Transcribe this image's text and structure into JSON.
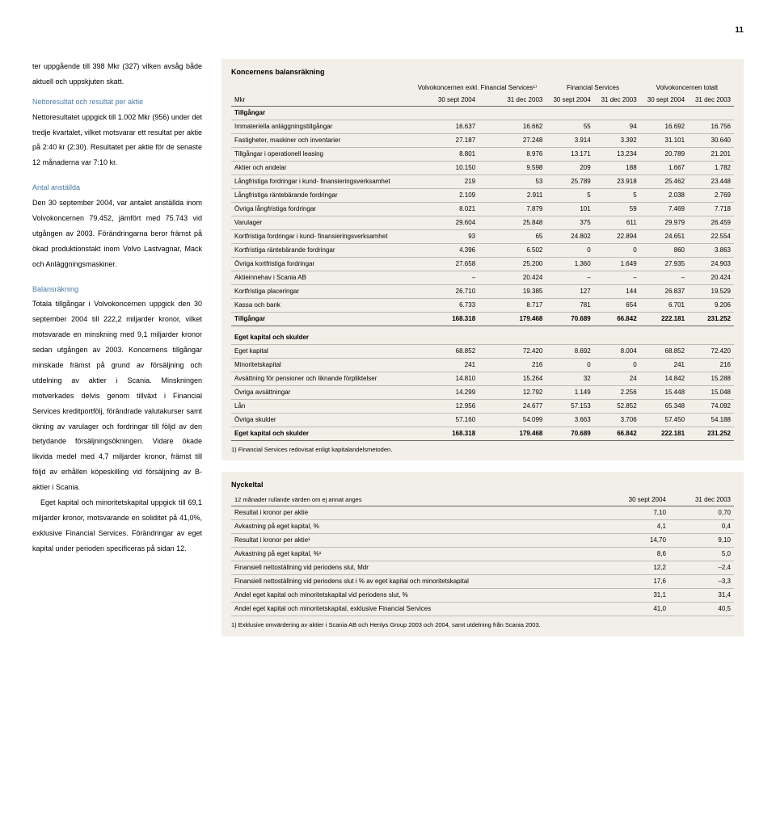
{
  "page_number": "11",
  "left": {
    "para1": "ter uppgående till 398 Mkr (327) vilken avsåg både aktuell och uppskjuten skatt.",
    "h1": "Nettoresultat och resultat per aktie",
    "para2": "Nettoresultatet uppgick till 1.002 Mkr (956) under det tredje kvartalet, vilket motsvarar ett resultat per aktie på 2:40 kr (2:30). Resultatet per aktie för de senaste 12 månaderna var 7:10 kr.",
    "h2": "Antal anställda",
    "para3": "Den 30 september 2004, var antalet anställda inom Volvokoncernen 79.452, jämfört med 75.743 vid utgången av 2003. Förändringarna beror främst på ökad produktionstakt inom Volvo Lastvagnar, Mack och Anläggningsmaskiner.",
    "h3": "Balansräkning",
    "para4": "Totala tillgångar i Volvokoncernen uppgick den 30 september 2004 till 222,2 miljarder kronor, vilket motsvarade en minskning med 9,1 miljarder kronor sedan utgången av 2003. Koncernens tillgångar minskade främst på grund av försäljning och utdelning av aktier i Scania. Minskningen motverkades delvis genom tillväxt i Financial Services kreditportfölj, förändrade valutakurser samt ökning av varulager och fordringar till följd av den betydande försäljningsökningen. Vidare ökade likvida medel med 4,7 miljarder kronor, främst till följd av erhållen köpeskilling vid försäljning av B-aktier i Scania.",
    "para5": "Eget kapital och minoritetskapital uppgick till 69,1 miljarder kronor, motsvarande en soliditet på 41,0%, exklusive Financial Services. Förändringar av eget kapital under perioden specificeras på sidan 12."
  },
  "balance": {
    "title": "Koncernens balansräkning",
    "group_headers": [
      "",
      "Volvokoncernen exkl. Financial Services¹⁾",
      "Financial Services",
      "Volvokoncernen totalt"
    ],
    "col_unit": "Mkr",
    "col_headers": [
      "30 sept 2004",
      "31 dec 2003",
      "30 sept 2004",
      "31 dec 2003",
      "30 sept 2004",
      "31 dec 2003"
    ],
    "section1": "Tillgångar",
    "rows1": [
      [
        "Immateriella anläggningstillgångar",
        "16.637",
        "16.662",
        "55",
        "94",
        "16.692",
        "16.756"
      ],
      [
        "Fastigheter, maskiner och inventarier",
        "27.187",
        "27.248",
        "3.914",
        "3.392",
        "31.101",
        "30.640"
      ],
      [
        "Tillgångar i operationell leasing",
        "8.801",
        "8.976",
        "13.171",
        "13.234",
        "20.789",
        "21.201"
      ],
      [
        "Aktier och andelar",
        "10.150",
        "9.598",
        "209",
        "188",
        "1.667",
        "1.782"
      ],
      [
        "Långfristiga fordringar i kund-\nfinansieringsverksamhet",
        "219",
        "53",
        "25.789",
        "23.918",
        "25.462",
        "23.448"
      ],
      [
        "Långfristiga räntebärande fordringar",
        "2.109",
        "2.911",
        "5",
        "5",
        "2.038",
        "2.769"
      ],
      [
        "Övriga långfristiga fordringar",
        "8.021",
        "7.879",
        "101",
        "59",
        "7.469",
        "7.718"
      ],
      [
        "Varulager",
        "29.604",
        "25.848",
        "375",
        "611",
        "29.979",
        "26.459"
      ],
      [
        "Kortfristiga fordringar i kund-\nfinansieringsverksamhet",
        "93",
        "65",
        "24.802",
        "22.894",
        "24.651",
        "22.554"
      ],
      [
        "Kortfristiga räntebärande fordringar",
        "4.396",
        "6.502",
        "0",
        "0",
        "860",
        "3.863"
      ],
      [
        "Övriga kortfristiga fordringar",
        "27.658",
        "25.200",
        "1.360",
        "1.649",
        "27.935",
        "24.903"
      ],
      [
        "Aktieinnehav i Scania AB",
        "–",
        "20.424",
        "–",
        "–",
        "–",
        "20.424"
      ],
      [
        "Kortfristiga placeringar",
        "26.710",
        "19.385",
        "127",
        "144",
        "26.837",
        "19.529"
      ],
      [
        "Kassa och bank",
        "6.733",
        "8.717",
        "781",
        "654",
        "6.701",
        "9.206"
      ]
    ],
    "total1": [
      "Tillgångar",
      "168.318",
      "179.468",
      "70.689",
      "66.842",
      "222.181",
      "231.252"
    ],
    "section2": "Eget kapital och skulder",
    "rows2": [
      [
        "Eget kapital",
        "68.852",
        "72.420",
        "8.692",
        "8.004",
        "68.852",
        "72.420"
      ],
      [
        "Minoritetskapital",
        "241",
        "216",
        "0",
        "0",
        "241",
        "216"
      ],
      [
        "Avsättning för pensioner och liknande förpliktelser",
        "14.810",
        "15.264",
        "32",
        "24",
        "14.842",
        "15.288"
      ],
      [
        "Övriga avsättningar",
        "14.299",
        "12.792",
        "1.149",
        "2.256",
        "15.448",
        "15.048"
      ],
      [
        "Lån",
        "12.956",
        "24.677",
        "57.153",
        "52.852",
        "65.348",
        "74.092"
      ],
      [
        "Övriga skulder",
        "57.160",
        "54.099",
        "3.663",
        "3.706",
        "57.450",
        "54.188"
      ]
    ],
    "total2": [
      "Eget kapital och skulder",
      "168.318",
      "179.468",
      "70.689",
      "66.842",
      "222.181",
      "231.252"
    ],
    "footnote": "1) Financial Services redovisat enligt kapitalandelsmetoden."
  },
  "nyckel": {
    "title": "Nyckeltal",
    "caption": "12 månader rullande värden om ej annat anges",
    "col_headers": [
      "30 sept 2004",
      "31 dec 2003"
    ],
    "rows": [
      [
        "Resultat i kronor per aktie",
        "7,10",
        "0,70"
      ],
      [
        "Avkastning på eget kapital, %",
        "4,1",
        "0,4"
      ],
      [
        "Resultat i kronor per aktie¹",
        "14,70",
        "9,10"
      ],
      [
        "Avkastning på eget kapital, %¹",
        "8,6",
        "5,0"
      ],
      [
        "Finansiell nettoställning vid periodens slut, Mdr",
        "12,2",
        "–2,4"
      ],
      [
        "Finansiell nettoställning vid periodens slut i % av eget kapital och minoritetskapital",
        "17,6",
        "–3,3"
      ],
      [
        "Andel eget kapital och minoritetskapital vid periodens slut, %",
        "31,1",
        "31,4"
      ],
      [
        "Andel eget kapital och minoritetskapital, exklusive Financial Services",
        "41,0",
        "40,5"
      ]
    ],
    "footnote": "1) Exklusive omvärdering av aktier i Scania AB och Henlys Group 2003 och 2004, samt utdelning från Scania 2003."
  },
  "colors": {
    "panel_bg": "#f2efe8",
    "heading": "#4a7aa6"
  }
}
